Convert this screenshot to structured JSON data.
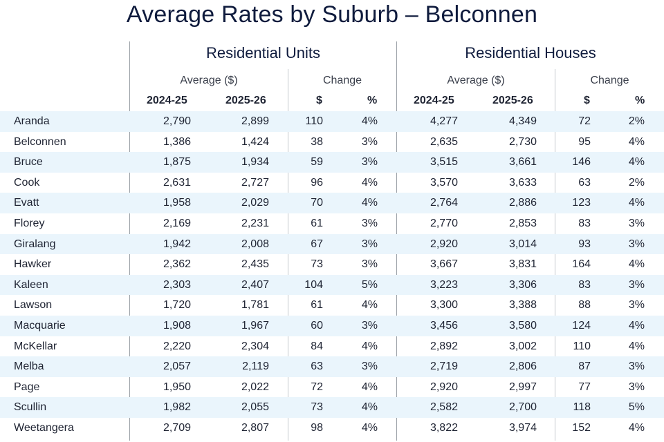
{
  "title": "Average Rates by Suburb – Belconnen",
  "groups": {
    "units": "Residential Units",
    "houses": "Residential Houses"
  },
  "subheads": {
    "average": "Average ($)",
    "change": "Change"
  },
  "columns": {
    "y1": "2024-25",
    "y2": "2025-26",
    "dollar": "$",
    "pct": "%"
  },
  "rows": [
    {
      "suburb": "Aranda",
      "u24": "2,790",
      "u25": "2,899",
      "ud": "110",
      "up": "4%",
      "h24": "4,277",
      "h25": "4,349",
      "hd": "72",
      "hp": "2%"
    },
    {
      "suburb": "Belconnen",
      "u24": "1,386",
      "u25": "1,424",
      "ud": "38",
      "up": "3%",
      "h24": "2,635",
      "h25": "2,730",
      "hd": "95",
      "hp": "4%"
    },
    {
      "suburb": "Bruce",
      "u24": "1,875",
      "u25": "1,934",
      "ud": "59",
      "up": "3%",
      "h24": "3,515",
      "h25": "3,661",
      "hd": "146",
      "hp": "4%"
    },
    {
      "suburb": "Cook",
      "u24": "2,631",
      "u25": "2,727",
      "ud": "96",
      "up": "4%",
      "h24": "3,570",
      "h25": "3,633",
      "hd": "63",
      "hp": "2%"
    },
    {
      "suburb": "Evatt",
      "u24": "1,958",
      "u25": "2,029",
      "ud": "70",
      "up": "4%",
      "h24": "2,764",
      "h25": "2,886",
      "hd": "123",
      "hp": "4%"
    },
    {
      "suburb": "Florey",
      "u24": "2,169",
      "u25": "2,231",
      "ud": "61",
      "up": "3%",
      "h24": "2,770",
      "h25": "2,853",
      "hd": "83",
      "hp": "3%"
    },
    {
      "suburb": "Giralang",
      "u24": "1,942",
      "u25": "2,008",
      "ud": "67",
      "up": "3%",
      "h24": "2,920",
      "h25": "3,014",
      "hd": "93",
      "hp": "3%"
    },
    {
      "suburb": "Hawker",
      "u24": "2,362",
      "u25": "2,435",
      "ud": "73",
      "up": "3%",
      "h24": "3,667",
      "h25": "3,831",
      "hd": "164",
      "hp": "4%"
    },
    {
      "suburb": "Kaleen",
      "u24": "2,303",
      "u25": "2,407",
      "ud": "104",
      "up": "5%",
      "h24": "3,223",
      "h25": "3,306",
      "hd": "83",
      "hp": "3%"
    },
    {
      "suburb": "Lawson",
      "u24": "1,720",
      "u25": "1,781",
      "ud": "61",
      "up": "4%",
      "h24": "3,300",
      "h25": "3,388",
      "hd": "88",
      "hp": "3%"
    },
    {
      "suburb": "Macquarie",
      "u24": "1,908",
      "u25": "1,967",
      "ud": "60",
      "up": "3%",
      "h24": "3,456",
      "h25": "3,580",
      "hd": "124",
      "hp": "4%"
    },
    {
      "suburb": "McKellar",
      "u24": "2,220",
      "u25": "2,304",
      "ud": "84",
      "up": "4%",
      "h24": "2,892",
      "h25": "3,002",
      "hd": "110",
      "hp": "4%"
    },
    {
      "suburb": "Melba",
      "u24": "2,057",
      "u25": "2,119",
      "ud": "63",
      "up": "3%",
      "h24": "2,719",
      "h25": "2,806",
      "hd": "87",
      "hp": "3%"
    },
    {
      "suburb": "Page",
      "u24": "1,950",
      "u25": "2,022",
      "ud": "72",
      "up": "4%",
      "h24": "2,920",
      "h25": "2,997",
      "hd": "77",
      "hp": "3%"
    },
    {
      "suburb": "Scullin",
      "u24": "1,982",
      "u25": "2,055",
      "ud": "73",
      "up": "4%",
      "h24": "2,582",
      "h25": "2,700",
      "hd": "118",
      "hp": "5%"
    },
    {
      "suburb": "Weetangera",
      "u24": "2,709",
      "u25": "2,807",
      "ud": "98",
      "up": "4%",
      "h24": "3,822",
      "h25": "3,974",
      "hd": "152",
      "hp": "4%"
    }
  ],
  "colors": {
    "title": "#0f1b3d",
    "row_stripe": "#eaf5fc",
    "divider": "#9aa0a6"
  }
}
